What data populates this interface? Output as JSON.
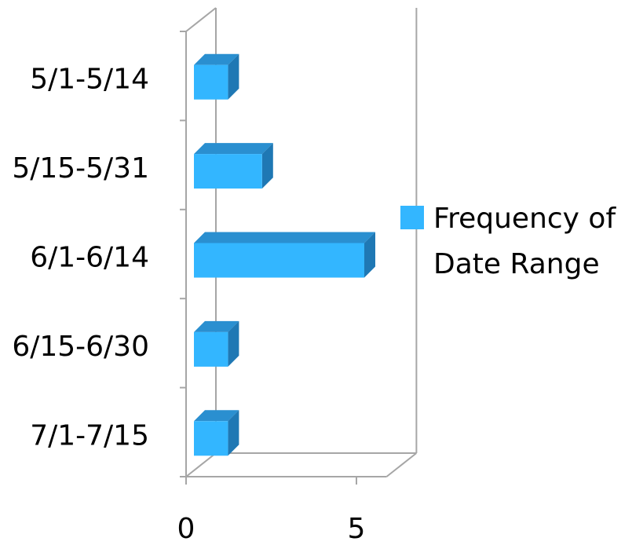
{
  "chart_data": {
    "type": "bar",
    "orientation": "horizontal",
    "three_d": true,
    "categories": [
      "5/1-5/14",
      "5/15-5/31",
      "6/1-6/14",
      "6/15-6/30",
      "7/1-7/15"
    ],
    "series": [
      {
        "name": "Frequency of Date Range",
        "values": [
          1,
          2,
          5,
          1,
          1
        ],
        "color": "#33b6ff",
        "top_color": "#2a8fd0",
        "side_color": "#1f78b4"
      }
    ],
    "x_ticks": [
      "0",
      "5"
    ],
    "xlim": [
      0,
      6
    ],
    "gridlines": false,
    "legend": {
      "position": "right",
      "label_lines": [
        "Frequency of",
        "Date Range"
      ]
    },
    "axis_color": "#a6a6a6"
  }
}
